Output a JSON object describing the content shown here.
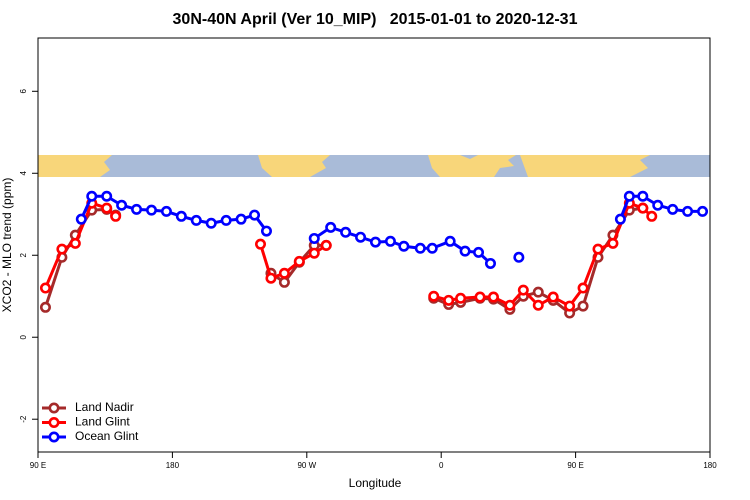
{
  "chart_data": {
    "type": "line",
    "title": "30N-40N April (Ver 10_MIP)   2015-01-01 to 2020-12-31",
    "x_label": "Longitude",
    "y_label": "XCO2 - MLO trend (ppm)",
    "xlim": [
      90,
      540
    ],
    "ylim": [
      -2.8,
      7.3
    ],
    "xticks": [
      {
        "value": 90,
        "label": "90 E"
      },
      180,
      {
        "value": 270,
        "label": "90 W"
      },
      {
        "value": 360,
        "label": "0"
      },
      {
        "value": 450,
        "label": "90 E"
      },
      {
        "value": 540,
        "label": "180"
      }
    ],
    "yticks": [
      -2,
      0,
      2,
      4,
      6
    ],
    "legend": "bottom-left",
    "series": [
      {
        "name": "Land Nadir",
        "color": "#a52a2a",
        "x": [
          95,
          106,
          115,
          126,
          136,
          142,
          null,
          246,
          255,
          265,
          275,
          283,
          null,
          355,
          365,
          373,
          386,
          395,
          406,
          415,
          425,
          435,
          446,
          455,
          465,
          475,
          486,
          495
        ],
        "values": [
          0.73,
          1.95,
          2.49,
          3.1,
          3.12,
          2.98,
          null,
          1.56,
          1.34,
          1.83,
          2.24,
          2.24,
          null,
          0.95,
          0.8,
          0.85,
          0.95,
          0.93,
          0.68,
          1.0,
          1.1,
          0.9,
          0.59,
          0.76,
          1.95,
          2.49,
          3.1,
          3.15
        ]
      },
      {
        "name": "Land Glint",
        "color": "#ff0000",
        "x": [
          95,
          106,
          115,
          126,
          136,
          142,
          null,
          239,
          246,
          255,
          265,
          275,
          283,
          null,
          355,
          365,
          373,
          386,
          395,
          406,
          415,
          425,
          435,
          446,
          455,
          465,
          475,
          486,
          495,
          501
        ],
        "values": [
          1.2,
          2.15,
          2.29,
          3.27,
          3.15,
          2.95,
          null,
          2.27,
          1.44,
          1.56,
          1.85,
          2.05,
          2.24,
          null,
          1.0,
          0.9,
          0.95,
          0.98,
          0.98,
          0.78,
          1.15,
          0.78,
          0.98,
          0.76,
          1.2,
          2.15,
          2.29,
          3.27,
          3.15,
          2.95
        ]
      },
      {
        "name": "Ocean Glint",
        "color": "#0000ff",
        "x": [
          119,
          126,
          136,
          146,
          156,
          166,
          176,
          186,
          196,
          206,
          216,
          226,
          235,
          243,
          null,
          275,
          286,
          296,
          306,
          316,
          326,
          335,
          346,
          354,
          366,
          376,
          385,
          393,
          null,
          412,
          null,
          480,
          486,
          495,
          505,
          515,
          525,
          535
        ],
        "values": [
          2.88,
          3.44,
          3.44,
          3.22,
          3.12,
          3.1,
          3.07,
          2.95,
          2.85,
          2.78,
          2.85,
          2.88,
          2.98,
          2.59,
          null,
          2.41,
          2.68,
          2.56,
          2.44,
          2.32,
          2.34,
          2.22,
          2.17,
          2.17,
          2.34,
          2.1,
          2.07,
          1.8,
          null,
          1.95,
          null,
          2.88,
          3.44,
          3.44,
          3.22,
          3.12,
          3.07,
          3.07
        ]
      }
    ]
  }
}
